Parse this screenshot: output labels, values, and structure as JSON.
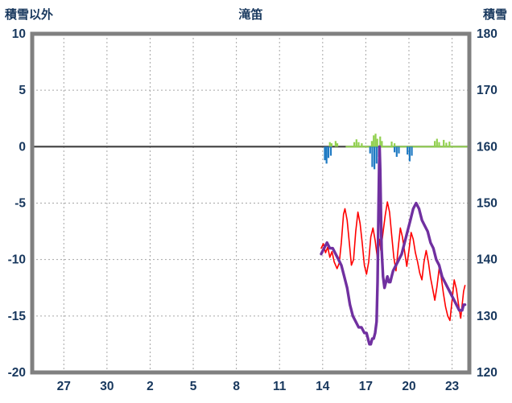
{
  "header": {
    "left_axis_title": "積雪以外",
    "chart_title": "滝笛",
    "right_axis_title": "積雪"
  },
  "chart_data": {
    "type": "mixed",
    "title": "滝笛",
    "grid": "dashed",
    "legend": "none",
    "left_axis": {
      "label": "積雪以外",
      "min": -20,
      "max": 10,
      "ticks": [
        10,
        5,
        0,
        -5,
        -10,
        -15,
        -20
      ]
    },
    "right_axis": {
      "label": "積雪",
      "min": 120,
      "max": 180,
      "ticks": [
        180,
        170,
        160,
        150,
        140,
        130,
        120
      ]
    },
    "x_axis": {
      "tick_labels": [
        "27",
        "30",
        "2",
        "5",
        "8",
        "11",
        "14",
        "17",
        "20",
        "23"
      ],
      "tick_positions": [
        0,
        3,
        6,
        9,
        12,
        15,
        18,
        21,
        24,
        27
      ],
      "min": -2.2,
      "max": 28.2
    },
    "zero_line": {
      "value": 0,
      "color": "#3F3F3F"
    },
    "green_baseline": {
      "from": 19.6,
      "to": 28.2,
      "value": 0,
      "color": "#92D050"
    },
    "series": [
      {
        "name": "snowfall-bars",
        "type": "bar",
        "axis": "left",
        "color": "#92D050",
        "points": [
          [
            18.5,
            0.4
          ],
          [
            18.62,
            0.3
          ],
          [
            18.9,
            0.5
          ],
          [
            19.02,
            0.3
          ],
          [
            20.2,
            0.4
          ],
          [
            20.35,
            0.65
          ],
          [
            20.5,
            0.4
          ],
          [
            20.72,
            0.3
          ],
          [
            21.42,
            0.5
          ],
          [
            21.55,
            1.0
          ],
          [
            21.68,
            1.15
          ],
          [
            21.8,
            0.7
          ],
          [
            22.0,
            0.9
          ],
          [
            22.12,
            0.5
          ],
          [
            22.8,
            0.45
          ],
          [
            23.0,
            0.3
          ],
          [
            25.8,
            0.5
          ],
          [
            25.95,
            0.7
          ],
          [
            26.1,
            0.4
          ],
          [
            26.42,
            0.6
          ],
          [
            26.6,
            0.35
          ],
          [
            26.82,
            0.45
          ]
        ]
      },
      {
        "name": "melt-bars",
        "type": "bar",
        "axis": "left",
        "color": "#1F7AC3",
        "points": [
          [
            18.15,
            -1.2
          ],
          [
            18.27,
            -1.5
          ],
          [
            18.4,
            -1.0
          ],
          [
            18.57,
            -0.8
          ],
          [
            21.3,
            -0.6
          ],
          [
            21.45,
            -1.8
          ],
          [
            21.6,
            -2.0
          ],
          [
            21.75,
            -1.5
          ],
          [
            21.9,
            -0.9
          ],
          [
            23.0,
            -0.5
          ],
          [
            23.15,
            -0.9
          ],
          [
            23.3,
            -0.6
          ],
          [
            23.9,
            -0.7
          ],
          [
            24.05,
            -1.3
          ],
          [
            24.2,
            -0.8
          ]
        ]
      },
      {
        "name": "temperature-line",
        "type": "line",
        "axis": "left",
        "color": "#FF0000",
        "width": 1.6,
        "points": [
          [
            17.9,
            -9.0
          ],
          [
            18.05,
            -8.6
          ],
          [
            18.2,
            -9.4
          ],
          [
            18.35,
            -8.9
          ],
          [
            18.5,
            -9.8
          ],
          [
            18.65,
            -9.3
          ],
          [
            18.8,
            -10.2
          ],
          [
            19.0,
            -10.8
          ],
          [
            19.15,
            -10.3
          ],
          [
            19.3,
            -8.5
          ],
          [
            19.45,
            -6.0
          ],
          [
            19.55,
            -5.5
          ],
          [
            19.7,
            -6.5
          ],
          [
            19.85,
            -8.5
          ],
          [
            20.0,
            -10.5
          ],
          [
            20.15,
            -10.0
          ],
          [
            20.3,
            -7.5
          ],
          [
            20.45,
            -5.8
          ],
          [
            20.6,
            -6.8
          ],
          [
            20.75,
            -8.5
          ],
          [
            20.9,
            -10.5
          ],
          [
            21.05,
            -11.3
          ],
          [
            21.2,
            -10.2
          ],
          [
            21.35,
            -8.0
          ],
          [
            21.5,
            -7.2
          ],
          [
            21.65,
            -8.3
          ],
          [
            21.8,
            -9.8
          ],
          [
            21.95,
            -8.2
          ],
          [
            22.05,
            -9.2
          ],
          [
            22.2,
            -7.6
          ],
          [
            22.35,
            -6.1
          ],
          [
            22.5,
            -4.9
          ],
          [
            22.65,
            -5.8
          ],
          [
            22.8,
            -7.8
          ],
          [
            22.95,
            -9.8
          ],
          [
            23.1,
            -11.0
          ],
          [
            23.25,
            -9.0
          ],
          [
            23.4,
            -7.2
          ],
          [
            23.55,
            -8.0
          ],
          [
            23.7,
            -9.3
          ],
          [
            23.85,
            -10.6
          ],
          [
            24.0,
            -9.2
          ],
          [
            24.15,
            -7.6
          ],
          [
            24.3,
            -8.2
          ],
          [
            24.45,
            -9.4
          ],
          [
            24.6,
            -10.2
          ],
          [
            24.75,
            -11.2
          ],
          [
            24.9,
            -11.8
          ],
          [
            25.05,
            -10.2
          ],
          [
            25.2,
            -9.2
          ],
          [
            25.35,
            -10.2
          ],
          [
            25.5,
            -11.6
          ],
          [
            25.65,
            -12.6
          ],
          [
            25.8,
            -13.6
          ],
          [
            25.95,
            -12.4
          ],
          [
            26.1,
            -10.8
          ],
          [
            26.25,
            -11.6
          ],
          [
            26.4,
            -13.0
          ],
          [
            26.55,
            -14.2
          ],
          [
            26.7,
            -15.0
          ],
          [
            26.85,
            -15.4
          ],
          [
            27.0,
            -13.6
          ],
          [
            27.15,
            -11.8
          ],
          [
            27.3,
            -12.6
          ],
          [
            27.45,
            -14.0
          ],
          [
            27.6,
            -15.2
          ],
          [
            27.7,
            -14.0
          ],
          [
            27.8,
            -12.8
          ],
          [
            27.9,
            -12.3
          ]
        ]
      },
      {
        "name": "snow-depth-line",
        "type": "line",
        "axis": "right",
        "color": "#7030A0",
        "width": 3.4,
        "points": [
          [
            17.9,
            141
          ],
          [
            18.1,
            142
          ],
          [
            18.3,
            143
          ],
          [
            18.5,
            142
          ],
          [
            18.7,
            142
          ],
          [
            18.9,
            141
          ],
          [
            19.1,
            140
          ],
          [
            19.3,
            139
          ],
          [
            19.5,
            137
          ],
          [
            19.7,
            135
          ],
          [
            19.9,
            132
          ],
          [
            20.1,
            130
          ],
          [
            20.3,
            129
          ],
          [
            20.5,
            128
          ],
          [
            20.7,
            128
          ],
          [
            20.9,
            127
          ],
          [
            21.05,
            127
          ],
          [
            21.15,
            126
          ],
          [
            21.25,
            125
          ],
          [
            21.35,
            125
          ],
          [
            21.45,
            126
          ],
          [
            21.55,
            126
          ],
          [
            21.65,
            127
          ],
          [
            21.75,
            129
          ],
          [
            21.82,
            136
          ],
          [
            21.88,
            148
          ],
          [
            21.93,
            157
          ],
          [
            21.96,
            160
          ],
          [
            22.0,
            156
          ],
          [
            22.05,
            149
          ],
          [
            22.1,
            142
          ],
          [
            22.2,
            137
          ],
          [
            22.3,
            135
          ],
          [
            22.4,
            136
          ],
          [
            22.5,
            137
          ],
          [
            22.6,
            136
          ],
          [
            22.7,
            136
          ],
          [
            22.8,
            137
          ],
          [
            22.9,
            138
          ],
          [
            23.1,
            139
          ],
          [
            23.3,
            140
          ],
          [
            23.5,
            141
          ],
          [
            23.7,
            143
          ],
          [
            23.9,
            145
          ],
          [
            24.1,
            147
          ],
          [
            24.3,
            149
          ],
          [
            24.5,
            150
          ],
          [
            24.7,
            149
          ],
          [
            24.9,
            147
          ],
          [
            25.1,
            146
          ],
          [
            25.3,
            145
          ],
          [
            25.5,
            143
          ],
          [
            25.7,
            142
          ],
          [
            25.9,
            140
          ],
          [
            26.1,
            139
          ],
          [
            26.3,
            137
          ],
          [
            26.5,
            136
          ],
          [
            26.7,
            135
          ],
          [
            26.9,
            134
          ],
          [
            27.1,
            133
          ],
          [
            27.3,
            132
          ],
          [
            27.5,
            131
          ],
          [
            27.6,
            131
          ],
          [
            27.7,
            131
          ],
          [
            27.8,
            132
          ],
          [
            27.9,
            132
          ]
        ]
      }
    ],
    "style": {
      "frame_color": "#808080",
      "grid_color": "#A6A6A6",
      "label_color": "#17375D"
    }
  }
}
